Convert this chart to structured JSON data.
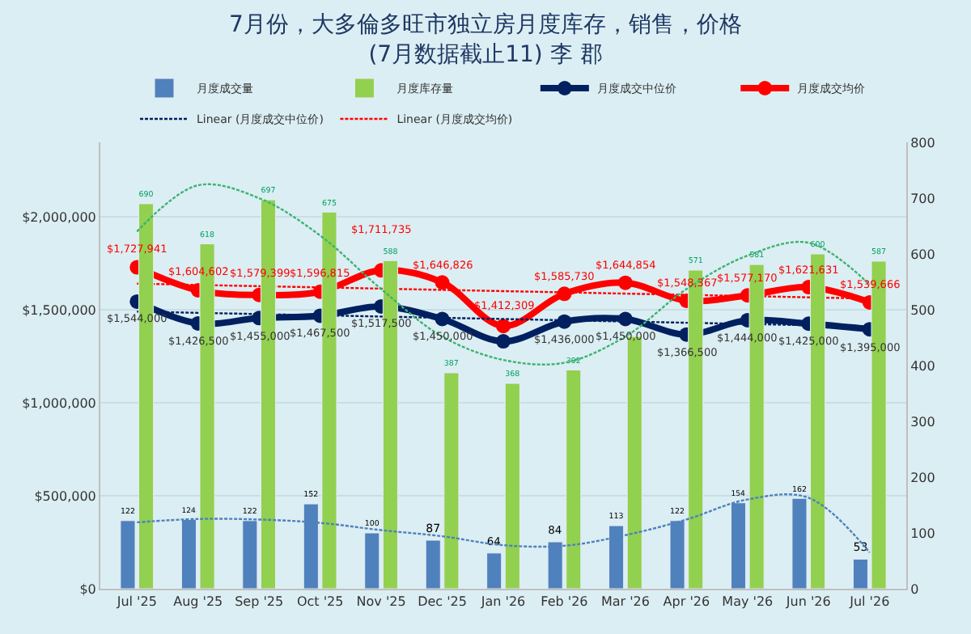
{
  "chart_data": {
    "type": "bar",
    "title": "7月份，大多倫多旺市独立房月度库存，销售，价格\n(7月数据截止11) 李 郡",
    "categories": [
      "Jul '25",
      "Aug '25",
      "Sep '25",
      "Oct '25",
      "Nov '25",
      "Dec '25",
      "Jan '26",
      "Feb '26",
      "Mar '26",
      "Apr '26",
      "May '26",
      "Jun '26",
      "Jul '26"
    ],
    "series": [
      {
        "name": "月度成交量",
        "axis": "y2",
        "color": "#4f81bd",
        "values": [
          122,
          124,
          122,
          152,
          100,
          87,
          64,
          84,
          113,
          122,
          154,
          162,
          53
        ],
        "value_labels": [
          "122",
          "124",
          "122",
          "152",
          "100",
          "87",
          "64",
          "84",
          "113",
          "122",
          "154",
          "162",
          "53"
        ]
      },
      {
        "name": "月度库存量",
        "axis": "y2",
        "color": "#92d050",
        "values": [
          690,
          618,
          697,
          675,
          588,
          387,
          368,
          392,
          452,
          571,
          581,
          600,
          587
        ],
        "value_labels": [
          "690",
          "618",
          "697",
          "675",
          "588",
          "387",
          "368",
          "392",
          null,
          "571",
          "581",
          "600",
          "587"
        ]
      },
      {
        "name": "月度成交中位价",
        "type": "line",
        "color": "#002060",
        "marker": "circle",
        "values": [
          1544000,
          1426500,
          1455000,
          1467500,
          1517500,
          1450000,
          1330000,
          1436000,
          1450000,
          1366500,
          1444000,
          1425000,
          1395000
        ],
        "value_labels": [
          "$1,544,000",
          "$1,426,500",
          "$1,455,000",
          "$1,467,500",
          "$1,517,500",
          "$1,450,000",
          null,
          "$1,436,000",
          "$1,450,000",
          "$1,366,500",
          "$1,444,000",
          "$1,425,000",
          "$1,395,000"
        ]
      },
      {
        "name": "月度成交均价",
        "type": "line",
        "color": "#ff0000",
        "marker": "circle",
        "values": [
          1727941,
          1604602,
          1579399,
          1596815,
          1711735,
          1646826,
          1412309,
          1585730,
          1644854,
          1548367,
          1577170,
          1621631,
          1539666
        ],
        "value_labels": [
          "$1,727,941",
          "$1,604,602",
          "$1,579,399",
          "$1,596,815",
          "$1,711,735",
          "$1,646,826",
          "$1,412,309",
          "$1,585,730",
          "$1,644,854",
          "$1,548,367",
          "$1,577,170",
          "$1,621,631",
          "$1,539,666"
        ]
      },
      {
        "name": "Linear (月度成交中位价)",
        "type": "line",
        "color": "#002060",
        "line_style": "dotted",
        "x": [
          "Jul '25",
          "Jul '26"
        ],
        "values": [
          1490000,
          1410000
        ]
      },
      {
        "name": "Linear (月度成交均价)",
        "type": "line",
        "color": "#ff0000",
        "line_style": "dotted",
        "x": [
          "Jul '25",
          "Jul '26"
        ],
        "values": [
          1640000,
          1560000
        ]
      },
      {
        "type": "line",
        "axis": "y2",
        "color": "#4f81bd",
        "line_style": "dotted",
        "values": [
          119,
          125,
          124,
          118,
          105,
          94,
          78,
          77,
          96,
          124,
          160,
          163,
          65
        ]
      },
      {
        "type": "line",
        "axis": "y2",
        "color": "#3cb371",
        "line_style": "dotted",
        "values": [
          640,
          723,
          700,
          633,
          537,
          452,
          410,
          405,
          452,
          537,
          597,
          620,
          545
        ]
      }
    ],
    "ylim": [
      0,
      2400000
    ],
    "yticks": [
      {
        "value": 0,
        "label": "$0"
      },
      {
        "value": 500000,
        "label": "$500,000"
      },
      {
        "value": 1000000,
        "label": "$1,000,000"
      },
      {
        "value": 1500000,
        "label": "$1,500,000"
      },
      {
        "value": 2000000,
        "label": "$2,000,000"
      }
    ],
    "y2lim": [
      0,
      800
    ],
    "y2ticks": [
      0,
      100,
      200,
      300,
      400,
      500,
      600,
      700,
      800
    ],
    "grid": "y",
    "legend": "top"
  }
}
